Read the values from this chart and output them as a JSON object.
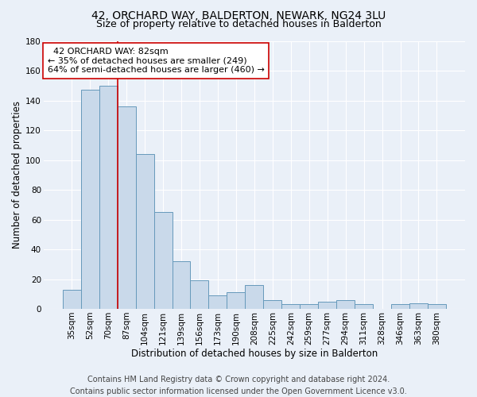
{
  "title": "42, ORCHARD WAY, BALDERTON, NEWARK, NG24 3LU",
  "subtitle": "Size of property relative to detached houses in Balderton",
  "xlabel": "Distribution of detached houses by size in Balderton",
  "ylabel": "Number of detached properties",
  "footer_line1": "Contains HM Land Registry data © Crown copyright and database right 2024.",
  "footer_line2": "Contains public sector information licensed under the Open Government Licence v3.0.",
  "categories": [
    "35sqm",
    "52sqm",
    "70sqm",
    "87sqm",
    "104sqm",
    "121sqm",
    "139sqm",
    "156sqm",
    "173sqm",
    "190sqm",
    "208sqm",
    "225sqm",
    "242sqm",
    "259sqm",
    "277sqm",
    "294sqm",
    "311sqm",
    "328sqm",
    "346sqm",
    "363sqm",
    "380sqm"
  ],
  "values": [
    13,
    147,
    150,
    136,
    104,
    65,
    32,
    19,
    9,
    11,
    16,
    6,
    3,
    3,
    5,
    6,
    3,
    0,
    3,
    4,
    3
  ],
  "bar_color": "#c9d9ea",
  "bar_edge_color": "#6699bb",
  "background_color": "#eaf0f8",
  "grid_color": "#ffffff",
  "ylim": [
    0,
    180
  ],
  "yticks": [
    0,
    20,
    40,
    60,
    80,
    100,
    120,
    140,
    160,
    180
  ],
  "property_label": "42 ORCHARD WAY: 82sqm",
  "annotation_line1": "← 35% of detached houses are smaller (249)",
  "annotation_line2": "64% of semi-detached houses are larger (460) →",
  "red_line_color": "#cc0000",
  "annotation_box_color": "#ffffff",
  "annotation_box_edge": "#cc0000",
  "title_fontsize": 10,
  "subtitle_fontsize": 9,
  "axis_label_fontsize": 8.5,
  "tick_fontsize": 7.5,
  "annotation_fontsize": 8,
  "footer_fontsize": 7
}
